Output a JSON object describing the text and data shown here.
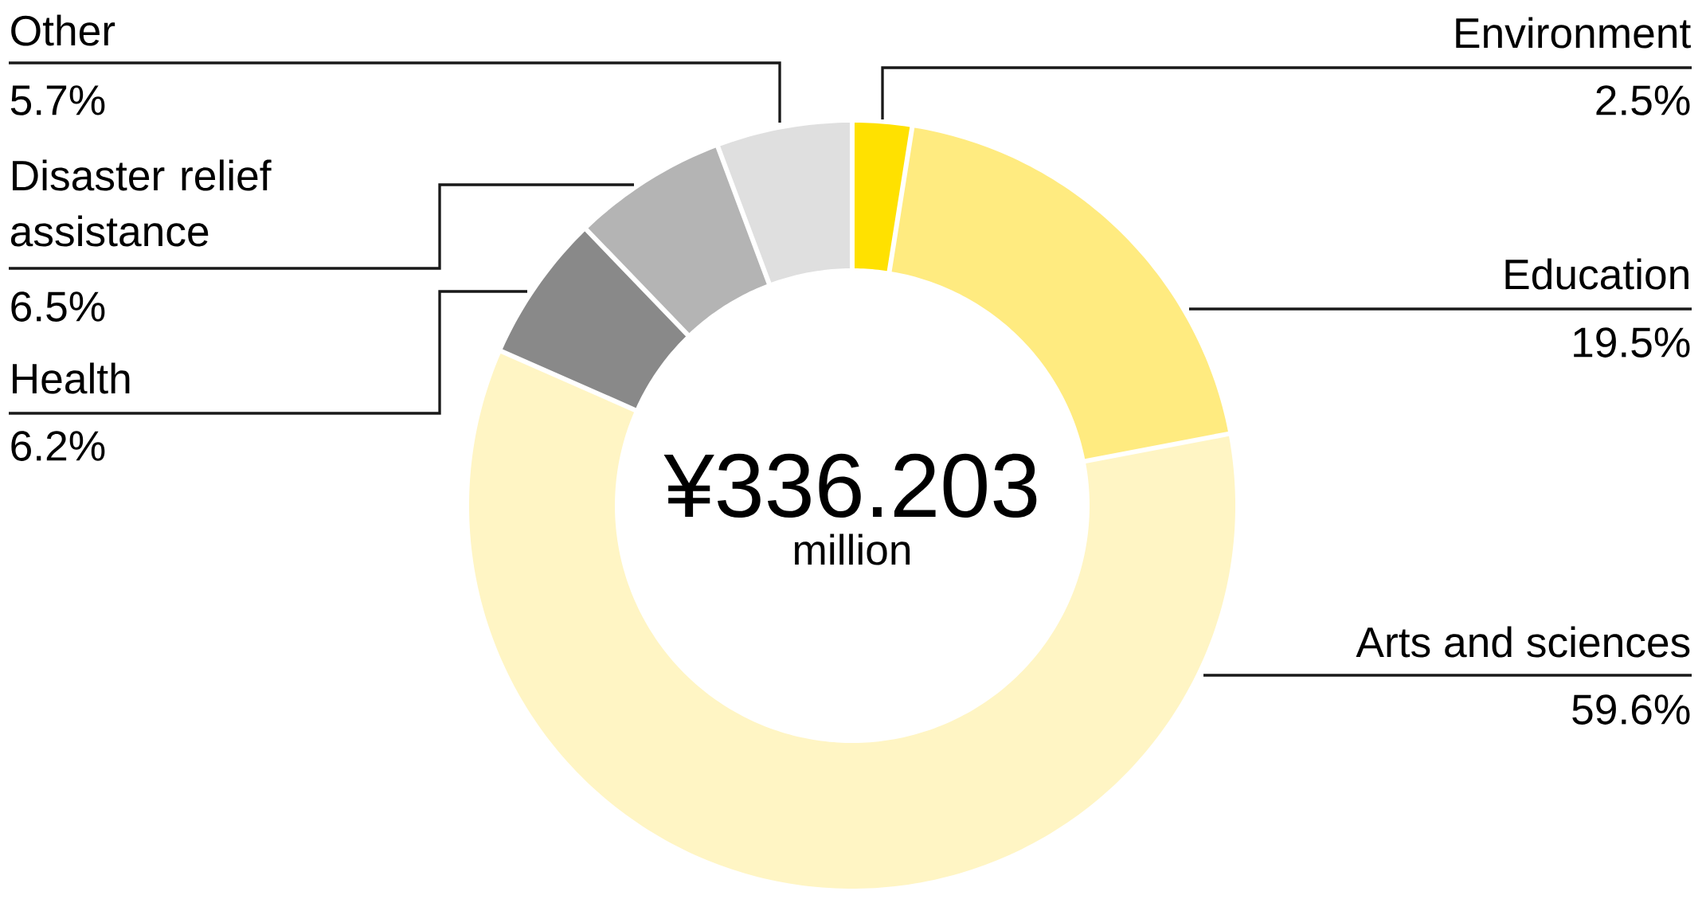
{
  "chart_data": {
    "type": "donut",
    "categories": [
      "Environment",
      "Education",
      "Arts and sciences",
      "Health",
      "Disaster relief assistance",
      "Other"
    ],
    "values": [
      2.5,
      19.5,
      59.6,
      6.2,
      6.5,
      5.7
    ],
    "colors": [
      "#ffe100",
      "#ffeb80",
      "#fff5c4",
      "#898989",
      "#b4b4b4",
      "#dfdfdf"
    ],
    "value_labels": [
      "2.5%",
      "19.5%",
      "59.6%",
      "6.2%",
      "6.5%",
      "5.7%"
    ],
    "annotations": [
      "¥336.203",
      "million"
    ]
  }
}
